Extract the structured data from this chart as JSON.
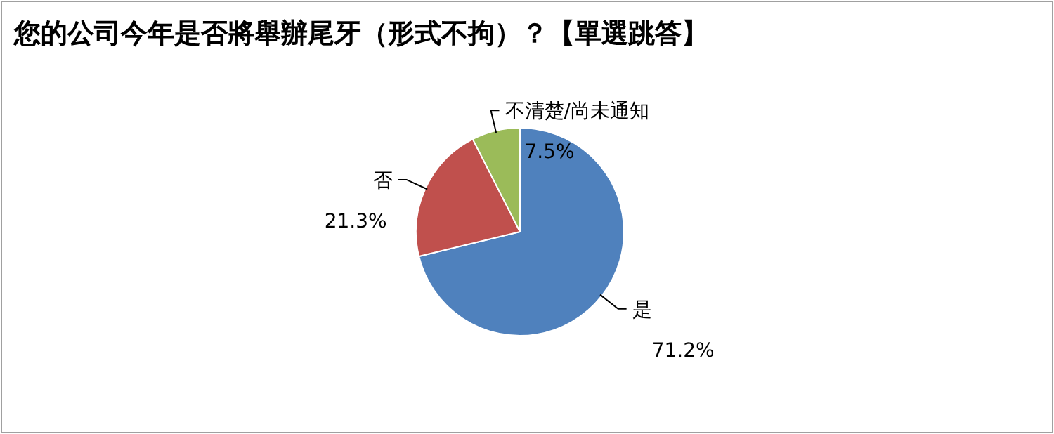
{
  "chart_data": {
    "type": "pie",
    "title": "您的公司今年是否將舉辦尾牙（形式不拘）？【單選跳答】",
    "categories": [
      "是",
      "否",
      "不清楚/尚未通知"
    ],
    "values": [
      71.2,
      21.3,
      7.5
    ],
    "colors": [
      "#4f81bd",
      "#c0504d",
      "#9bbb59"
    ],
    "value_labels": [
      "71.2%",
      "21.3%",
      "7.5%"
    ]
  }
}
